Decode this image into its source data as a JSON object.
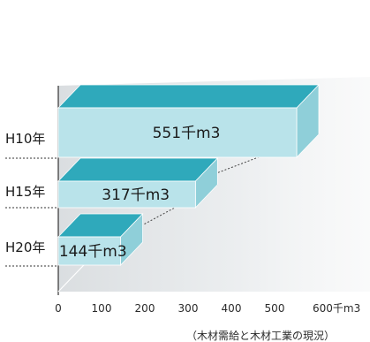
{
  "chart_data": {
    "type": "bar",
    "orientation": "horizontal",
    "style": "3d",
    "categories": [
      "H10年",
      "H15年",
      "H20年"
    ],
    "values": [
      551,
      317,
      144
    ],
    "data_labels": [
      "551千m3",
      "317千m3",
      "144千m3"
    ],
    "x_ticks": [
      "0",
      "100",
      "200",
      "300",
      "400",
      "500",
      "600千m3"
    ],
    "xlim": [
      0,
      600
    ],
    "source": "（木材需給と木材工業の現況）",
    "colors": {
      "bar_front": "#b9e3ea",
      "bar_top": "#2fa9bb",
      "bar_side": "#8fcfd9",
      "backdrop": "#dfe3e6",
      "axis": "#333333"
    }
  }
}
